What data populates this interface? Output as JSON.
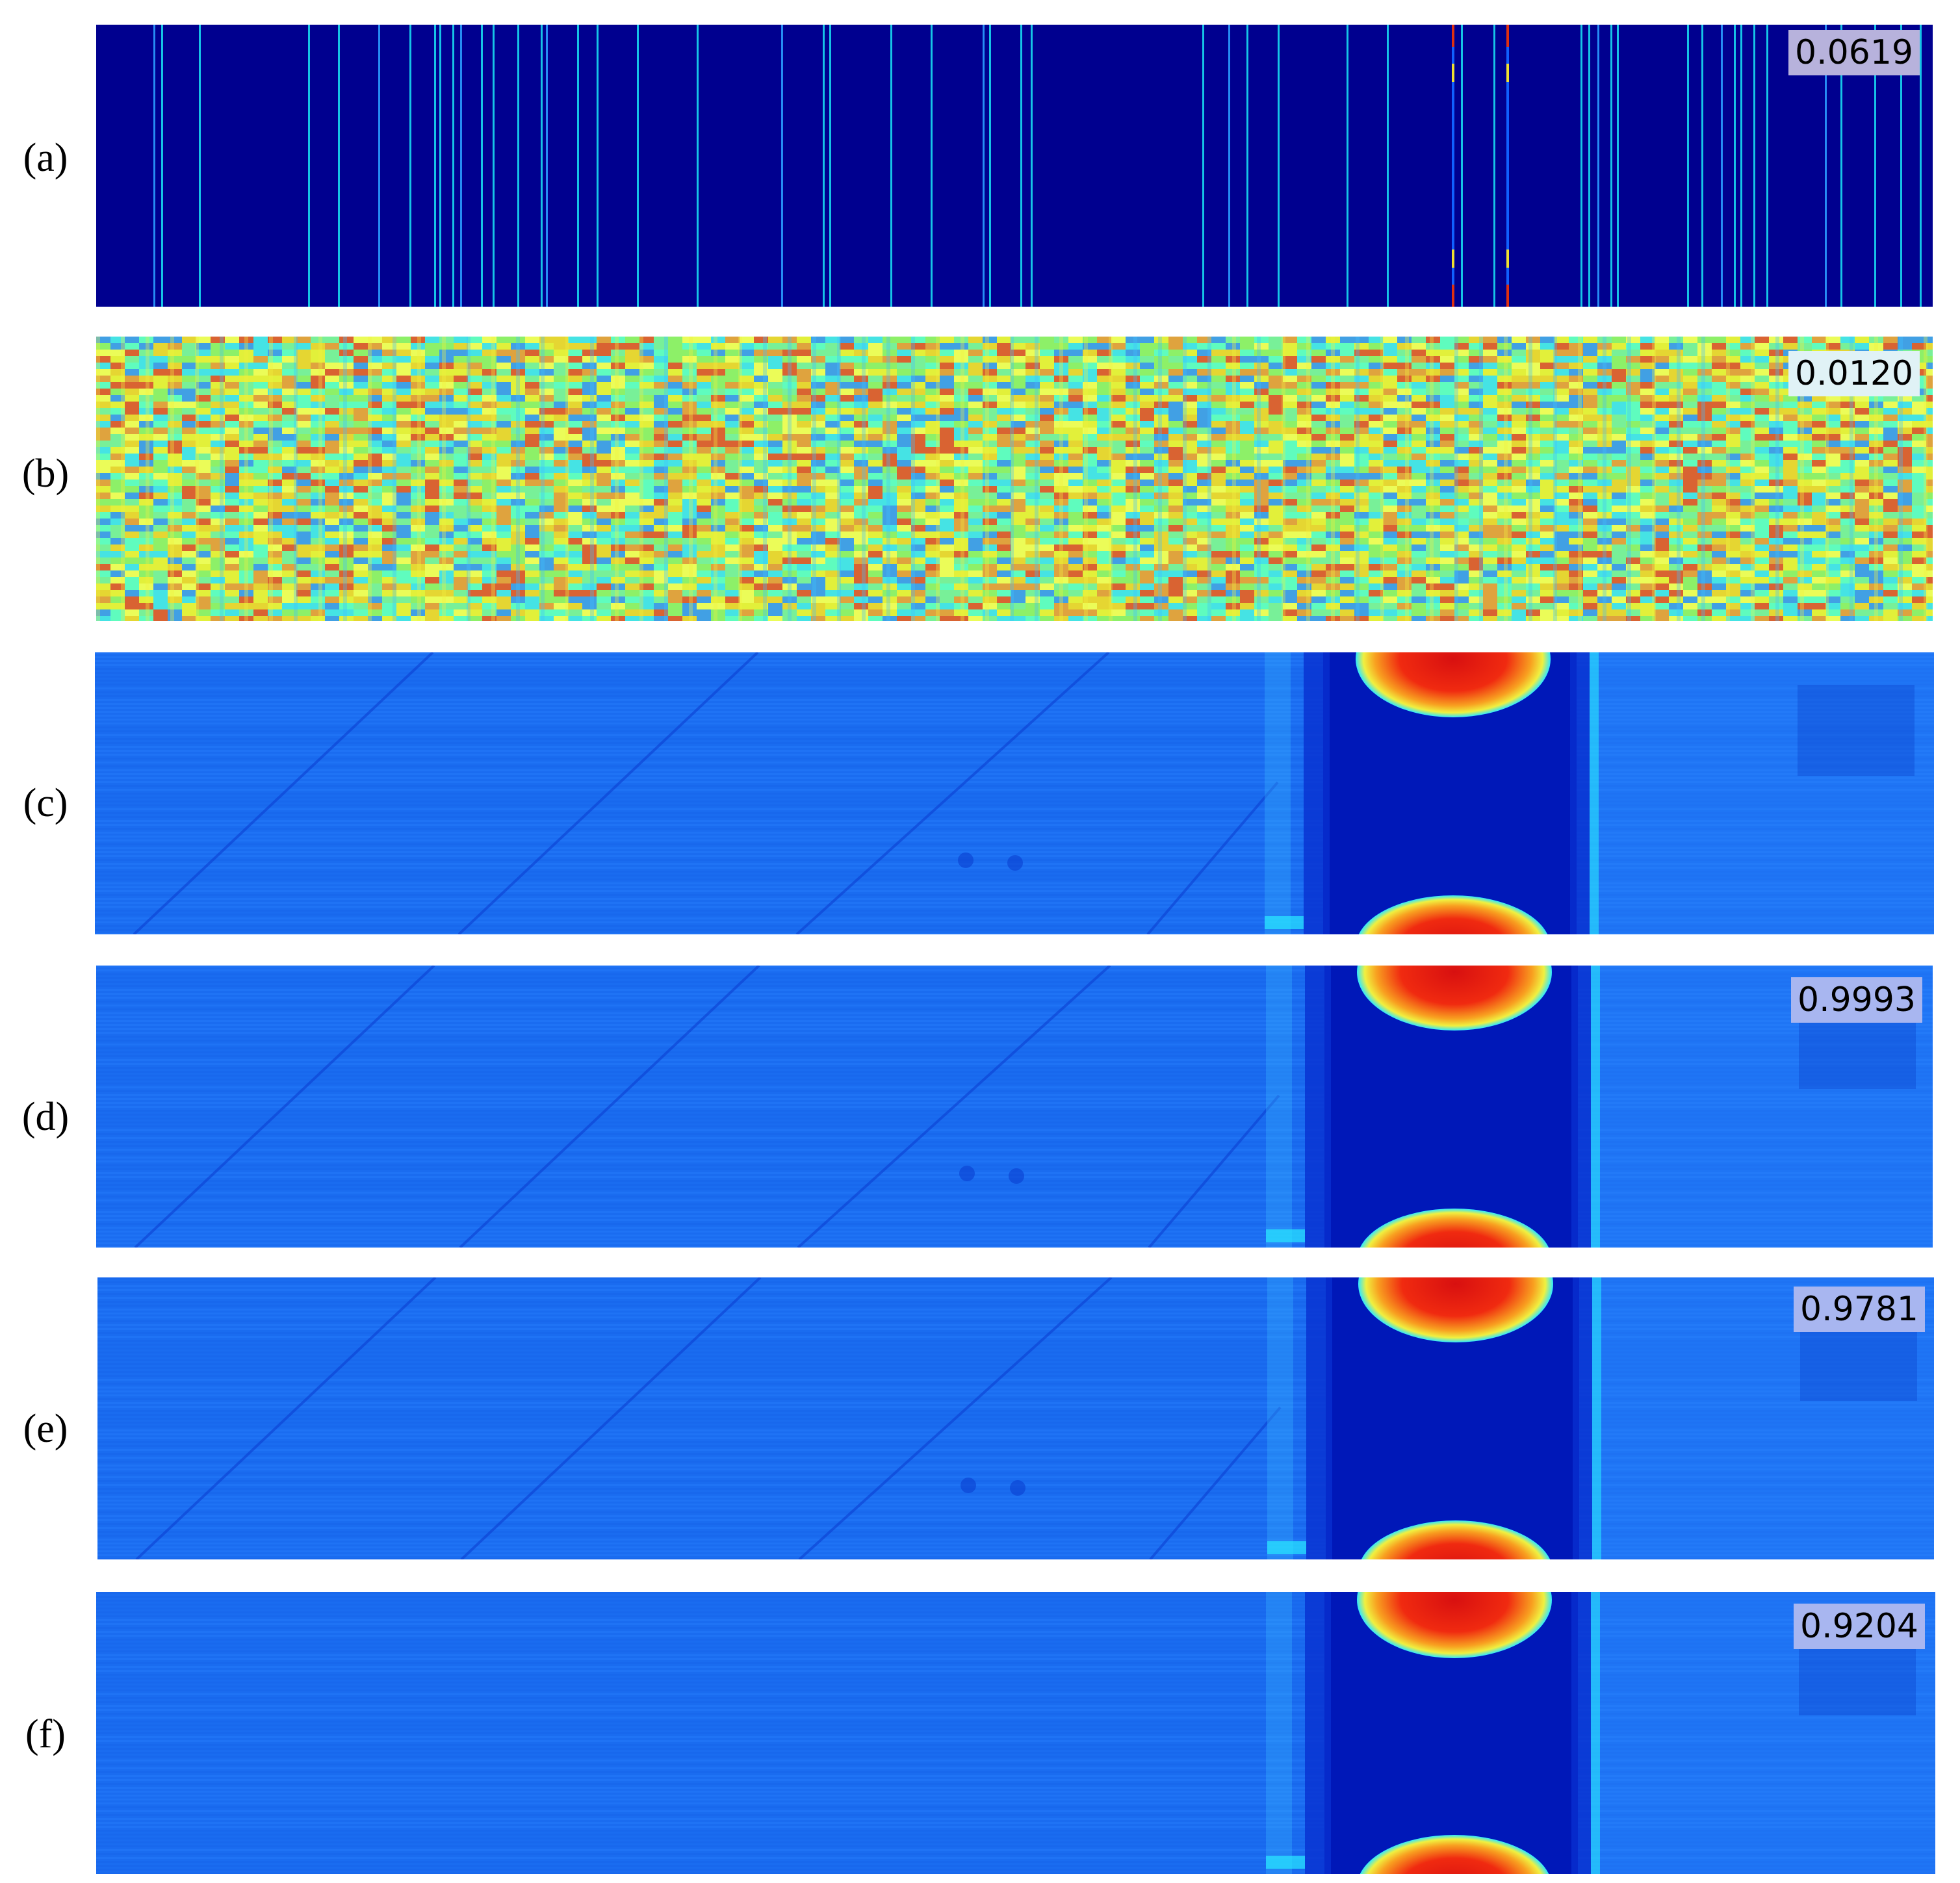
{
  "colors": {
    "jet_dark_blue": "#00008f",
    "jet_blue": "#0050ff",
    "jet_cyan": "#18e0f0",
    "jet_yellow": "#f4f02a",
    "jet_red": "#c00000",
    "background": "#ffffff"
  },
  "panels": [
    {
      "id": "a",
      "label": "(a)",
      "score": "0.0619",
      "style": "sparse-lines"
    },
    {
      "id": "b",
      "label": "(b)",
      "score": "0.0120",
      "style": "noise"
    },
    {
      "id": "c",
      "label": "(c)",
      "score": "",
      "style": "reference"
    },
    {
      "id": "d",
      "label": "(d)",
      "score": "0.9993",
      "style": "reconstruction"
    },
    {
      "id": "e",
      "label": "(e)",
      "score": "0.9781",
      "style": "reconstruction"
    },
    {
      "id": "f",
      "label": "(f)",
      "score": "0.9204",
      "style": "reconstruction-blurred"
    }
  ]
}
